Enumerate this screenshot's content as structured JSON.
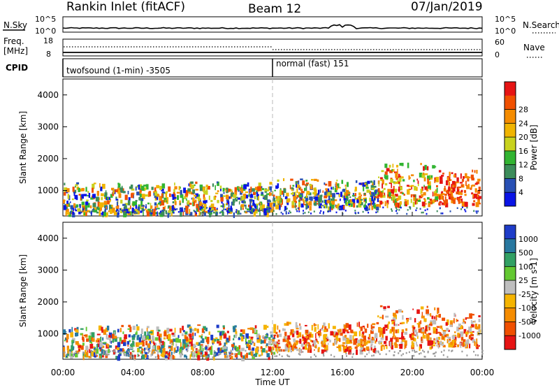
{
  "header": {
    "station": "Rankin Inlet (fitACF)",
    "beam": "Beam 12",
    "date": "07/Jan/2019"
  },
  "noise_panel": {
    "left_label": "N.Sky",
    "right_label": "N.Search",
    "left_ticks": [
      "10^5",
      "10^0"
    ],
    "right_ticks": [
      "10^5",
      "10^0"
    ]
  },
  "freq_panel": {
    "left_label": "Freq.",
    "left_unit": "[MHz]",
    "right_label": "Nave",
    "left_ticks": [
      "18",
      "8"
    ],
    "right_ticks": [
      "60",
      "0"
    ]
  },
  "cpid_panel": {
    "label": "CPID",
    "modes": [
      {
        "name": "twofsound (1-min) -3505",
        "start": "00:00"
      },
      {
        "name": "normal (fast) 151",
        "start": "12:00"
      }
    ]
  },
  "chart_data": [
    {
      "type": "heatmap",
      "name": "Power",
      "ylabel": "Slant Range [km]",
      "ylim": [
        200,
        4500
      ],
      "yticks": [
        1000,
        2000,
        3000,
        4000
      ],
      "colorbar_label": "Power [dB]",
      "colorbar_ticks": [
        "4",
        "8",
        "12",
        "16",
        "20",
        "24",
        "28"
      ],
      "colors": [
        "#0a14e6",
        "#2850b4",
        "#3c8c5a",
        "#32b432",
        "#c8d21e",
        "#f0b400",
        "#f58c00",
        "#f05000",
        "#e61414"
      ],
      "echo_regions": [
        {
          "x": [
            0.0,
            12.0
          ],
          "y": [
            300,
            1300
          ],
          "level": "low-mid"
        },
        {
          "x": [
            12.0,
            18.0
          ],
          "y": [
            500,
            1400
          ],
          "level": "mid"
        },
        {
          "x": [
            18.0,
            21.5
          ],
          "y": [
            600,
            1900
          ],
          "level": "mid-high"
        },
        {
          "x": [
            21.5,
            23.8
          ],
          "y": [
            600,
            1700
          ],
          "level": "high"
        }
      ]
    },
    {
      "type": "heatmap",
      "name": "Velocity",
      "ylabel": "Slant Range [km]",
      "ylim": [
        200,
        4500
      ],
      "yticks": [
        1000,
        2000,
        3000,
        4000
      ],
      "colorbar_label": "Velocity [m s-1]",
      "colorbar_ticks": [
        "1000",
        "500",
        "100",
        "25",
        "-25",
        "-100",
        "-500",
        "-1000"
      ],
      "colors": [
        "#1e3cc8",
        "#2878a0",
        "#32a064",
        "#64c832",
        "#bebebe",
        "#f5b400",
        "#f58c00",
        "#f05000",
        "#e61414"
      ],
      "echo_regions": [
        {
          "x": [
            0.0,
            12.0
          ],
          "y": [
            300,
            1300
          ],
          "level": "mixed"
        },
        {
          "x": [
            12.0,
            18.0
          ],
          "y": [
            500,
            1400
          ],
          "level": "negative"
        },
        {
          "x": [
            18.0,
            21.5
          ],
          "y": [
            600,
            1900
          ],
          "level": "negative"
        },
        {
          "x": [
            21.5,
            23.8
          ],
          "y": [
            600,
            1700
          ],
          "level": "negative"
        }
      ]
    }
  ],
  "xaxis": {
    "label": "Time UT",
    "ticks": [
      "00:00",
      "04:00",
      "08:00",
      "12:00",
      "16:00",
      "20:00",
      "00:00"
    ],
    "xlim": [
      0,
      24
    ]
  }
}
